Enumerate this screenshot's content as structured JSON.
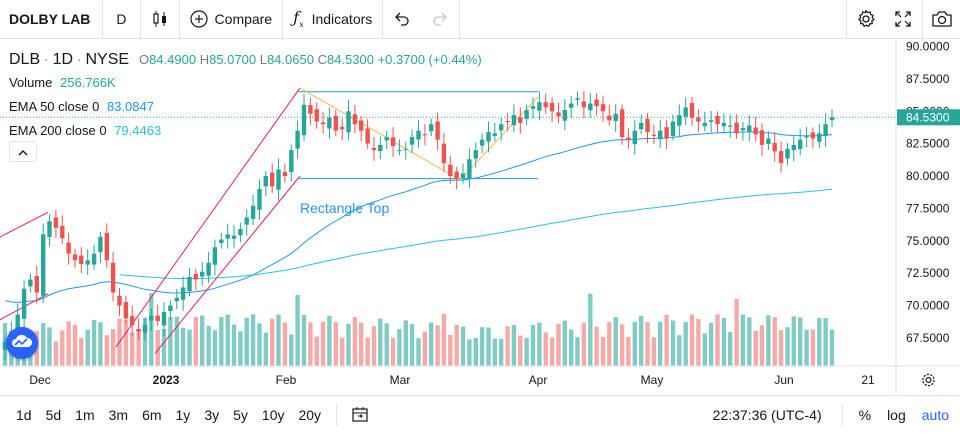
{
  "toolbar": {
    "symbol": "DOLBY LAB",
    "interval": "D",
    "compare_label": "Compare",
    "indicators_label": "Indicators"
  },
  "legend": {
    "symbol": "DLB",
    "interval": "1D",
    "exchange": "NYSE",
    "o_label": "O",
    "o": "84.4900",
    "h_label": "H",
    "h": "85.0700",
    "l_label": "L",
    "l": "84.0650",
    "c_label": "C",
    "c": "84.5300",
    "change": "+0.3700 (+0.44%)",
    "volume_label": "Volume",
    "volume": "256.766K",
    "ema50_label": "EMA 50 close 0",
    "ema50": "83.0847",
    "ema200_label": "EMA 200 close 0",
    "ema200": "79.4463"
  },
  "annotation": {
    "text": "Rectangle Top"
  },
  "price_axis": {
    "ticks": [
      "90.0000",
      "87.5000",
      "85.0000",
      "82.5000",
      "80.0000",
      "77.5000",
      "75.0000",
      "72.5000",
      "70.0000",
      "67.5000"
    ],
    "last_price": "84.5300"
  },
  "time_axis": {
    "labels": [
      "Dec",
      "2023",
      "Feb",
      "Mar",
      "Apr",
      "May",
      "Jun",
      "21"
    ]
  },
  "ranges": [
    "1d",
    "5d",
    "1m",
    "3m",
    "6m",
    "1y",
    "3y",
    "5y",
    "10y",
    "20y"
  ],
  "bottom": {
    "time": "22:37:36 (UTC-4)",
    "percent": "%",
    "log": "log",
    "auto": "auto"
  },
  "colors": {
    "up": "#26a69a",
    "down": "#ef5350",
    "ema50": "#2196f3",
    "ema200": "#26c6da",
    "accent": "#2962ff"
  },
  "chart_data": {
    "type": "candlestick",
    "price_range": [
      66,
      91
    ],
    "last_price": 84.53,
    "closes": [
      67.2,
      68.0,
      69.3,
      71.3,
      72.0,
      71.0,
      75.5,
      76.5,
      76.0,
      75.2,
      74.0,
      73.5,
      73.2,
      73.5,
      74.0,
      75.3,
      73.5,
      71.0,
      70.0,
      69.0,
      68.5,
      68.0,
      68.5,
      69.2,
      68.8,
      69.5,
      70.0,
      70.6,
      71.4,
      72.2,
      72.0,
      72.6,
      73.3,
      74.5,
      75.1,
      75.5,
      75.4,
      75.9,
      76.8,
      77.7,
      79.0,
      80.0,
      79.2,
      80.5,
      80.0,
      82.0,
      83.5,
      85.5,
      84.8,
      84.2,
      84.0,
      84.5,
      83.5,
      83.6,
      85.0,
      84.0,
      83.5,
      82.5,
      82.0,
      82.4,
      83.0,
      82.3,
      82.0,
      82.1,
      83.0,
      83.5,
      83.2,
      84.0,
      82.8,
      81.0,
      80.0,
      79.8,
      80.2,
      81.3,
      82.0,
      82.8,
      83.4,
      83.3,
      84.0,
      84.2,
      84.7,
      84.1,
      85.1,
      85.4,
      85.7,
      85.3,
      85.0,
      84.6,
      85.1,
      85.6,
      86.0,
      85.3,
      85.6,
      85.4,
      85.0,
      84.3,
      84.8,
      83.0,
      82.8,
      83.5,
      84.1,
      83.4,
      83.1,
      83.5,
      82.9,
      84.2,
      84.7,
      85.3,
      84.5,
      84.2,
      84.1,
      84.3,
      84.0,
      84.1,
      83.9,
      83.3,
      83.7,
      83.9,
      83.2,
      82.4,
      82.9,
      81.9,
      81.0,
      82.1,
      82.4,
      82.8,
      83.1,
      82.9,
      83.3,
      84.0,
      84.53
    ],
    "volume_scale_label": "Volume",
    "ema50_label": "EMA 50 close 0",
    "ema200_label": "EMA 200 close 0",
    "horizontal_levels": [
      86.5,
      79.8
    ],
    "x_labels": [
      "Dec",
      "2023",
      "Feb",
      "Mar",
      "Apr",
      "May",
      "Jun",
      "21"
    ]
  }
}
